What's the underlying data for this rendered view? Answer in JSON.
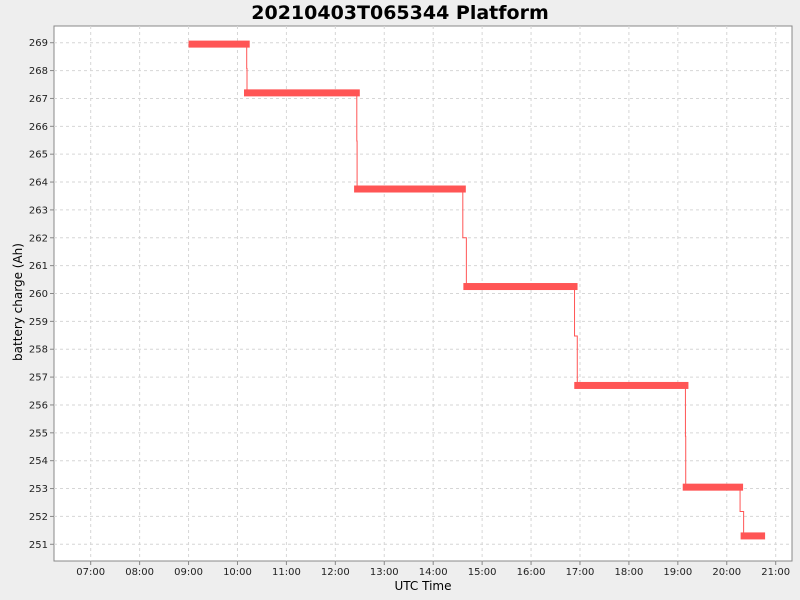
{
  "chart_data": {
    "type": "line",
    "title": "20210403T065344 Platform",
    "xlabel": "UTC Time",
    "ylabel": "battery charge (Ah)",
    "x_ticks": [
      "07:00",
      "08:00",
      "09:00",
      "10:00",
      "11:00",
      "12:00",
      "13:00",
      "14:00",
      "15:00",
      "16:00",
      "17:00",
      "18:00",
      "19:00",
      "20:00",
      "21:00"
    ],
    "y_ticks": [
      251,
      252,
      253,
      254,
      255,
      256,
      257,
      258,
      259,
      260,
      261,
      262,
      263,
      264,
      265,
      266,
      267,
      268,
      269
    ],
    "xlim": [
      "06:15",
      "21:20"
    ],
    "ylim": [
      250.4,
      269.6
    ],
    "grid": true,
    "series_color": "#ff5555",
    "segments": [
      {
        "start": "09:00",
        "end": "10:15",
        "value": 268.95
      },
      {
        "start": "10:08",
        "end": "12:30",
        "value": 267.2
      },
      {
        "start": "12:23",
        "end": "14:40",
        "value": 263.75
      },
      {
        "start": "14:37",
        "end": "16:57",
        "value": 260.25
      },
      {
        "start": "16:53",
        "end": "19:13",
        "value": 256.7
      },
      {
        "start": "19:06",
        "end": "20:20",
        "value": 253.05
      },
      {
        "start": "20:17",
        "end": "20:47",
        "value": 251.3
      }
    ]
  }
}
